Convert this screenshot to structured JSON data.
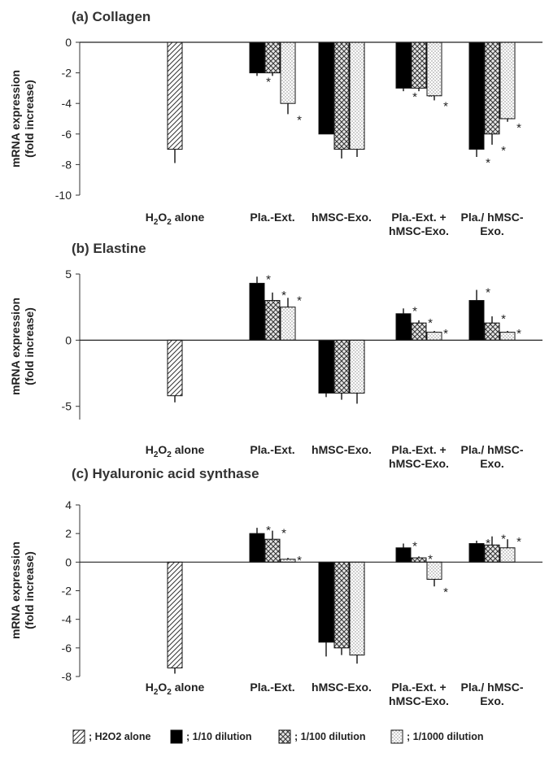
{
  "legend": [
    {
      "key": "h2o2",
      "label": "; H2O2 alone"
    },
    {
      "key": "d10",
      "label": "; 1/10 dilution"
    },
    {
      "key": "d100",
      "label": "; 1/100 dilution"
    },
    {
      "key": "d1000",
      "label": "; 1/1000 dilution"
    }
  ],
  "chart_data": [
    {
      "type": "bar",
      "title": "(a) Collagen",
      "ylabel": [
        "mRNA expression",
        "(fold increase)"
      ],
      "ylim": [
        -10,
        0
      ],
      "yticks": [
        0,
        -2,
        -4,
        -6,
        -8,
        -10
      ],
      "categories": [
        {
          "lines": [
            [
              "H",
              "2",
              "O",
              "2",
              " alone"
            ]
          ]
        },
        {
          "lines": [
            [
              "Pla.-Ext."
            ]
          ]
        },
        {
          "lines": [
            [
              "hMSC-Exo."
            ]
          ]
        },
        {
          "lines": [
            [
              "Pla.-Ext. +"
            ],
            [
              "hMSC-Exo."
            ]
          ]
        },
        {
          "lines": [
            [
              "Pla./ hMSC-"
            ],
            [
              "Exo."
            ]
          ]
        }
      ],
      "series": [
        {
          "key": "h2o2",
          "values": [
            -7.0,
            null,
            null,
            null,
            null
          ],
          "errors": [
            0.9,
            null,
            null,
            null,
            null
          ],
          "sig": [
            false,
            false,
            false,
            false,
            false
          ]
        },
        {
          "key": "d10",
          "values": [
            null,
            -2.0,
            -6.0,
            -3.0,
            -7.0
          ],
          "errors": [
            null,
            0.2,
            0.0,
            0.2,
            0.5
          ],
          "sig": [
            false,
            true,
            false,
            true,
            true
          ]
        },
        {
          "key": "d100",
          "values": [
            null,
            -2.0,
            -7.0,
            -3.0,
            -6.0
          ],
          "errors": [
            null,
            0.2,
            0.6,
            0.2,
            0.7
          ],
          "sig": [
            false,
            true,
            false,
            true,
            true
          ]
        },
        {
          "key": "d1000",
          "values": [
            null,
            -4.0,
            -7.0,
            -3.5,
            -5.0
          ],
          "errors": [
            null,
            0.7,
            0.5,
            0.3,
            0.2
          ],
          "sig": [
            false,
            true,
            false,
            true,
            true
          ]
        }
      ]
    },
    {
      "type": "bar",
      "title": "(b) Elastine",
      "ylabel": [
        "mRNA expression",
        "(fold increase)"
      ],
      "ylim": [
        -6,
        5
      ],
      "yticks": [
        5,
        0,
        -5
      ],
      "categories": [
        {
          "lines": [
            [
              "H",
              "2",
              "O",
              "2",
              " alone"
            ]
          ]
        },
        {
          "lines": [
            [
              "Pla.-Ext."
            ]
          ]
        },
        {
          "lines": [
            [
              "hMSC-Exo."
            ]
          ]
        },
        {
          "lines": [
            [
              "Pla.-Ext. +"
            ],
            [
              "hMSC-Exo."
            ]
          ]
        },
        {
          "lines": [
            [
              "Pla./ hMSC-"
            ],
            [
              "Exo."
            ]
          ]
        }
      ],
      "series": [
        {
          "key": "h2o2",
          "values": [
            -4.2,
            null,
            null,
            null,
            null
          ],
          "errors": [
            0.5,
            null,
            null,
            null,
            null
          ],
          "sig": [
            false,
            false,
            false,
            false,
            false
          ]
        },
        {
          "key": "d10",
          "values": [
            null,
            4.3,
            -4.0,
            2.0,
            3.0
          ],
          "errors": [
            null,
            0.5,
            0.3,
            0.4,
            0.8
          ],
          "sig": [
            false,
            true,
            false,
            true,
            true
          ]
        },
        {
          "key": "d100",
          "values": [
            null,
            3.0,
            -4.0,
            1.3,
            1.3
          ],
          "errors": [
            null,
            0.6,
            0.5,
            0.2,
            0.5
          ],
          "sig": [
            false,
            true,
            false,
            true,
            true
          ]
        },
        {
          "key": "d1000",
          "values": [
            null,
            2.5,
            -4.0,
            0.6,
            0.6
          ],
          "errors": [
            null,
            0.7,
            0.8,
            0.1,
            0.1
          ],
          "sig": [
            false,
            true,
            false,
            true,
            true
          ]
        }
      ]
    },
    {
      "type": "bar",
      "title": "(c) Hyaluronic acid synthase",
      "ylabel": [
        "mRNA expression",
        "(fold increase)"
      ],
      "ylim": [
        -8,
        4
      ],
      "yticks": [
        4,
        2,
        0,
        -2,
        -4,
        -6,
        -8
      ],
      "categories": [
        {
          "lines": [
            [
              "H",
              "2",
              "O",
              "2",
              " alone"
            ]
          ]
        },
        {
          "lines": [
            [
              "Pla.-Ext."
            ]
          ]
        },
        {
          "lines": [
            [
              "hMSC-Exo."
            ]
          ]
        },
        {
          "lines": [
            [
              "Pla.-Ext. +"
            ],
            [
              "hMSC-Exo."
            ]
          ]
        },
        {
          "lines": [
            [
              "Pla./ hMSC-"
            ],
            [
              "Exo."
            ]
          ]
        }
      ],
      "series": [
        {
          "key": "h2o2",
          "values": [
            -7.4,
            null,
            null,
            null,
            null
          ],
          "errors": [
            0.4,
            null,
            null,
            null,
            null
          ],
          "sig": [
            false,
            false,
            false,
            false,
            false
          ]
        },
        {
          "key": "d10",
          "values": [
            null,
            2.0,
            -5.6,
            1.0,
            1.3
          ],
          "errors": [
            null,
            0.4,
            1.0,
            0.3,
            0.2
          ],
          "sig": [
            false,
            true,
            false,
            true,
            true
          ]
        },
        {
          "key": "d100",
          "values": [
            null,
            1.6,
            -6.0,
            0.3,
            1.2
          ],
          "errors": [
            null,
            0.6,
            0.5,
            0.1,
            0.6
          ],
          "sig": [
            false,
            true,
            false,
            true,
            true
          ]
        },
        {
          "key": "d1000",
          "values": [
            null,
            0.2,
            -6.5,
            -1.2,
            1.0
          ],
          "errors": [
            null,
            0.1,
            0.6,
            0.5,
            0.6
          ],
          "sig": [
            false,
            true,
            false,
            true,
            true
          ]
        }
      ]
    }
  ]
}
